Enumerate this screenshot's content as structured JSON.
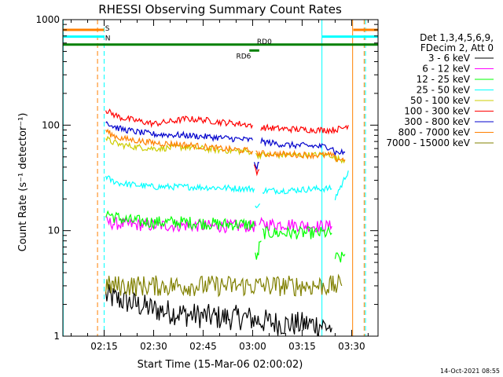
{
  "chart_data": {
    "type": "line",
    "title": "RHESSI Observing Summary Count Rates",
    "xlabel": "Start Time (15-Mar-06 02:00:02)",
    "ylabel": "Count Rate (s⁻¹ detector⁻¹)",
    "ylog": true,
    "ylim": [
      1,
      1000
    ],
    "xlim_minutes": [
      2.5,
      98
    ],
    "x_ticks": [
      {
        "m": 15,
        "label": "02:15"
      },
      {
        "m": 30,
        "label": "02:30"
      },
      {
        "m": 45,
        "label": "02:45"
      },
      {
        "m": 60,
        "label": "03:00"
      },
      {
        "m": 75,
        "label": "03:15"
      },
      {
        "m": 90,
        "label": "03:30"
      }
    ],
    "y_ticks": [
      {
        "v": 1,
        "label": "1"
      },
      {
        "v": 10,
        "label": "10"
      },
      {
        "v": 100,
        "label": "100"
      },
      {
        "v": 1000,
        "label": "1000"
      }
    ],
    "legend": {
      "position": "right",
      "header": [
        "Det 1,3,4,5,6,9,",
        "FDecim 2, Att 0"
      ]
    },
    "series": [
      {
        "name": "3 - 6 keV",
        "color": "#000000",
        "segments": [
          {
            "x": [
              15.5,
              20,
              30,
              40,
              50,
              58,
              62,
              70,
              80,
              84
            ],
            "y": [
              2.4,
              2.2,
              1.8,
              1.6,
              1.5,
              1.5,
              1.4,
              1.3,
              1.3,
              1.2
            ]
          }
        ]
      },
      {
        "name": "6 - 12 keV",
        "color": "#ff00ff",
        "segments": [
          {
            "x": [
              15.5,
              20,
              30,
              40,
              50,
              58,
              61
            ],
            "y": [
              12,
              11.5,
              11.2,
              11.2,
              11,
              11,
              11
            ]
          },
          {
            "x": [
              62,
              70,
              80,
              84
            ],
            "y": [
              11.5,
              11.5,
              11,
              11
            ]
          }
        ]
      },
      {
        "name": "12 - 25 keV",
        "color": "#00ff00",
        "segments": [
          {
            "x": [
              15.5,
              18,
              22,
              30,
              40,
              50,
              58,
              60.5
            ],
            "y": [
              15,
              13.5,
              12.5,
              12,
              12,
              11.5,
              11.5,
              11
            ]
          },
          {
            "x": [
              60.8,
              61.5,
              62,
              62.6
            ],
            "y": [
              6,
              5.5,
              7,
              8
            ]
          },
          {
            "x": [
              63,
              70,
              80,
              84
            ],
            "y": [
              9.5,
              9.5,
              9.5,
              9.5
            ]
          },
          {
            "x": [
              85,
              87,
              88
            ],
            "y": [
              5.5,
              5.5,
              6
            ]
          }
        ]
      },
      {
        "name": "25 - 50 keV",
        "color": "#00ffff",
        "segments": [
          {
            "x": [
              15.5,
              17,
              20,
              25,
              30,
              40,
              50,
              58,
              60.5
            ],
            "y": [
              33,
              30,
              28,
              27,
              26,
              26,
              25.5,
              25,
              25
            ]
          },
          {
            "x": [
              60.8,
              61.5,
              62.2
            ],
            "y": [
              17,
              16,
              18
            ]
          },
          {
            "x": [
              63,
              70,
              80,
              84
            ],
            "y": [
              24,
              24,
              25,
              25
            ]
          },
          {
            "x": [
              85,
              86,
              87,
              88,
              89
            ],
            "y": [
              20,
              24,
              27,
              32,
              37
            ]
          }
        ]
      },
      {
        "name": "50 - 100 keV",
        "color": "#cccc00",
        "segments": [
          {
            "x": [
              15.5,
              17,
              20,
              25,
              30,
              35,
              40,
              45,
              50,
              55,
              60
            ],
            "y": [
              75,
              70,
              65,
              62,
              60,
              61,
              62,
              60,
              58,
              57,
              56
            ]
          },
          {
            "x": [
              61,
              63,
              70,
              80,
              84,
              85,
              88
            ],
            "y": [
              52,
              52,
              52,
              52,
              52,
              48,
              47
            ]
          }
        ]
      },
      {
        "name": "100 - 300 keV",
        "color": "#ff0000",
        "segments": [
          {
            "x": [
              15.5,
              17,
              20,
              25,
              30,
              35,
              40,
              45,
              50,
              55,
              60
            ],
            "y": [
              140,
              130,
              118,
              110,
              103,
              108,
              115,
              112,
              107,
              104,
              100
            ]
          },
          {
            "x": [
              60.5,
              61.3,
              62
            ],
            "y": [
              40,
              35,
              38
            ]
          },
          {
            "x": [
              62.5,
              70,
              80,
              84,
              87,
              89
            ],
            "y": [
              95,
              92,
              90,
              90,
              93,
              100
            ]
          }
        ]
      },
      {
        "name": "300 - 800 keV",
        "color": "#0000cc",
        "segments": [
          {
            "x": [
              15.5,
              17,
              20,
              25,
              30,
              40,
              50,
              55,
              60
            ],
            "y": [
              110,
              100,
              92,
              86,
              82,
              80,
              76,
              74,
              72
            ]
          },
          {
            "x": [
              60.5,
              61.3,
              62
            ],
            "y": [
              45,
              40,
              44
            ]
          },
          {
            "x": [
              62.5,
              70,
              80,
              84,
              85,
              88
            ],
            "y": [
              70,
              65,
              63,
              62,
              55,
              55
            ]
          }
        ]
      },
      {
        "name": "800 - 7000 keV",
        "color": "#ff8000",
        "segments": [
          {
            "x": [
              15.5,
              17,
              20,
              30,
              40,
              50,
              60
            ],
            "y": [
              90,
              82,
              75,
              68,
              65,
              60,
              57
            ]
          },
          {
            "x": [
              61,
              70,
              80,
              84,
              85,
              88
            ],
            "y": [
              54,
              53,
              52,
              52,
              48,
              47
            ]
          }
        ]
      },
      {
        "name": "7000 - 15000 keV",
        "color": "#808000",
        "segments": [
          {
            "x": [
              15.5,
              20,
              30,
              40,
              50,
              60,
              70,
              80,
              87
            ],
            "y": [
              3,
              3,
              3,
              3,
              3,
              3,
              3,
              3,
              3
            ]
          }
        ]
      }
    ],
    "flag_lines": [
      {
        "label": "S",
        "color": "#ff8000",
        "y": 800,
        "segments": [
          [
            2.5,
            15
          ],
          [
            90.5,
            98
          ]
        ]
      },
      {
        "label": "N",
        "color": "#00ffff",
        "y": 690,
        "segments": [
          [
            2.5,
            15
          ],
          [
            81,
            98
          ]
        ]
      },
      {
        "label": "",
        "color": "#008000",
        "y": 580,
        "segments": [
          [
            2.5,
            98
          ]
        ]
      },
      {
        "label": "RD0",
        "color": "#008000",
        "y": 580,
        "segments": []
      },
      {
        "label": "RD6",
        "color": "#008000",
        "y": 510,
        "segments": [
          [
            59,
            62
          ]
        ]
      }
    ],
    "vertical_lines": [
      {
        "x": 2.6,
        "color": "#00ffff",
        "dash": false
      },
      {
        "x": 13,
        "color": "#ff8000",
        "dash": true
      },
      {
        "x": 15,
        "color": "#00ffff",
        "dash": true
      },
      {
        "x": 81,
        "color": "#00ffff",
        "dash": false
      },
      {
        "x": 90.3,
        "color": "#ff8000",
        "dash": false
      },
      {
        "x": 93.8,
        "color": "#ff8000",
        "dash": true
      },
      {
        "x": 94.2,
        "color": "#00ffff",
        "dash": true
      }
    ],
    "timestamp": "14-Oct-2021 08:55"
  }
}
